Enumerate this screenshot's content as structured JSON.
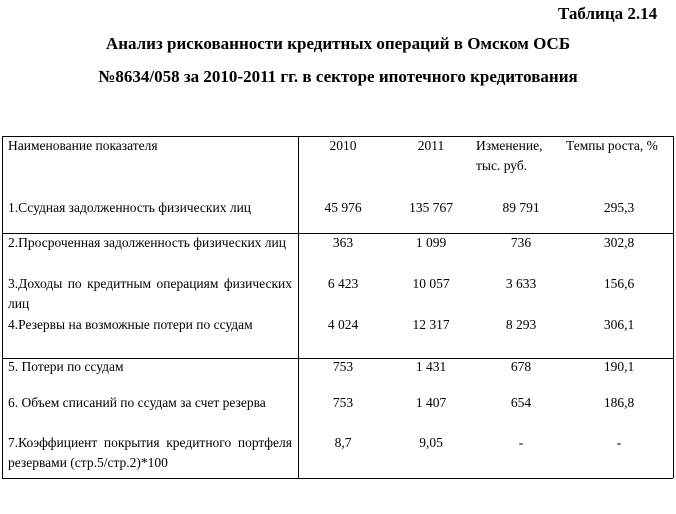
{
  "header": {
    "label": "Таблица 2.14",
    "title_lines": [
      "Анализ  рискованности кредитных операций в Омском ОСБ",
      "№8634/058 за 2010-2011 гг. в секторе ипотечного кредитования"
    ]
  },
  "table": {
    "columns": [
      "Наименование показателя",
      "2010",
      "2011",
      "Изменение, тыс. руб.",
      "Темпы роста, %"
    ],
    "rows": [
      [
        "1.Ссудная задолженность физических лиц",
        "45 976",
        "135 767",
        "89 791",
        "295,3"
      ],
      [
        "2.Просроченная задолженность физических лиц",
        "363",
        "1 099",
        "736",
        "302,8"
      ],
      [
        "3.Доходы по кредитным операциям физических лиц",
        "6 423",
        "10 057",
        "3 633",
        "156,6"
      ],
      [
        "4.Резервы на возможные потери по ссудам",
        "4 024",
        "12 317",
        "8 293",
        "306,1"
      ],
      [
        "5. Потери по ссудам",
        "753",
        "1 431",
        "678",
        "190,1"
      ],
      [
        "6. Объем списаний по ссудам за счет резерва",
        "753",
        "1 407",
        "654",
        "186,8"
      ],
      [
        "7.Коэффициент покрытия кредитного портфеля резервами (стр.5/стр.2)*100",
        "8,7",
        "9,05",
        "-",
        "-"
      ]
    ]
  }
}
